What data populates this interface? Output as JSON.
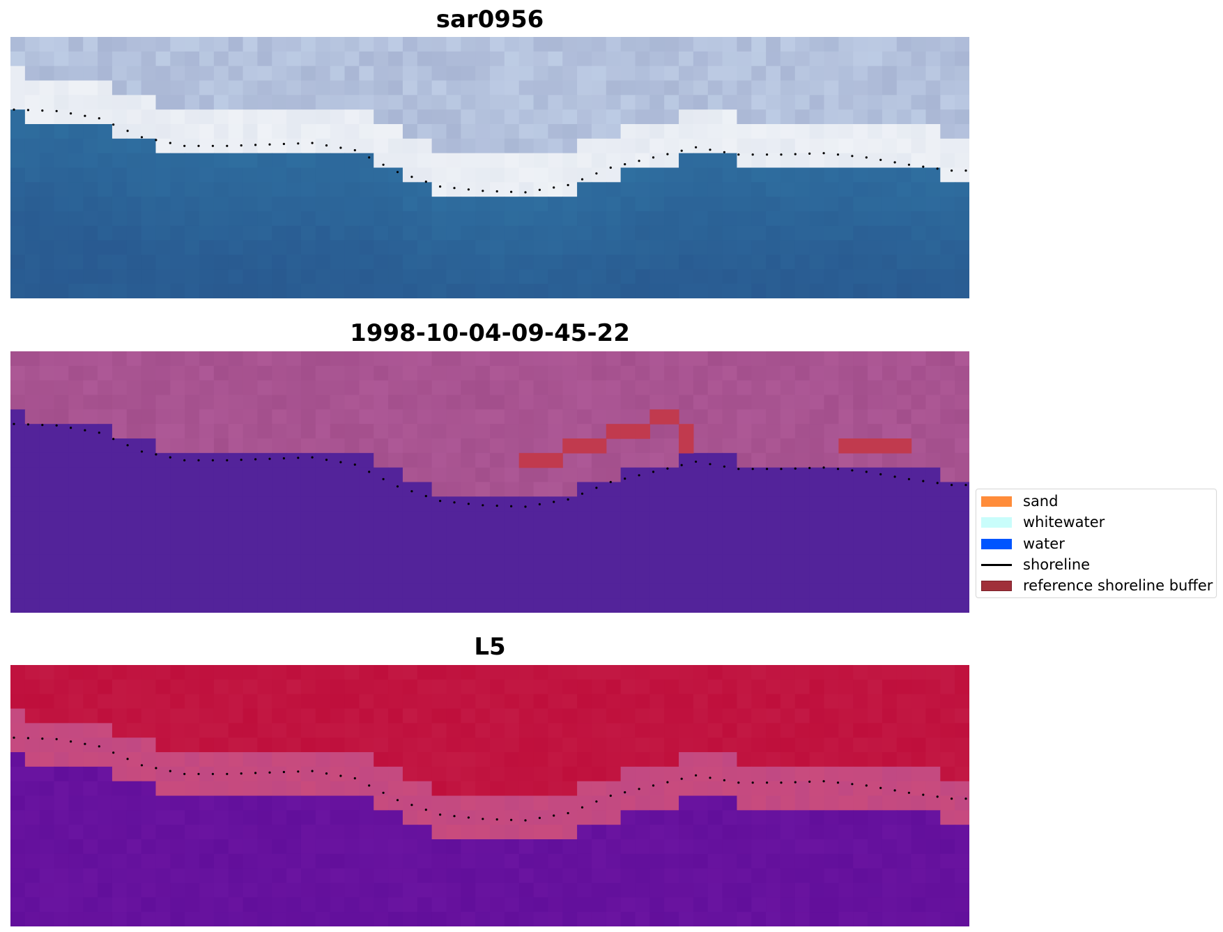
{
  "chart_data": [
    {
      "type": "heatmap",
      "title": "sar0956",
      "description_colors": {
        "top_land": "#a9b6d4",
        "surf_band": "#e4e9f1",
        "water": "#2f6fa0"
      },
      "shoreline_x": [
        0,
        3,
        6,
        9,
        12,
        15,
        18,
        21,
        24,
        27,
        30,
        33,
        36,
        39,
        42,
        45,
        48,
        51,
        54,
        57,
        60,
        63,
        66,
        67
      ],
      "shoreline_y": [
        5.0,
        5.1,
        5.6,
        6.9,
        7.5,
        7.5,
        7.4,
        7.3,
        7.8,
        9.3,
        10.3,
        10.6,
        10.7,
        10.2,
        9.0,
        8.3,
        7.6,
        8.1,
        8.1,
        8.0,
        8.3,
        8.8,
        9.2,
        9.2
      ]
    },
    {
      "type": "heatmap",
      "title": "1998-10-04-09-45-22",
      "description_colors": {
        "land": "#a34f8c",
        "water": "#53239a",
        "buffer": "#c13a4e"
      },
      "shoreline_x": [
        0,
        3,
        6,
        9,
        12,
        15,
        18,
        21,
        24,
        27,
        30,
        33,
        36,
        39,
        42,
        45,
        48,
        51,
        54,
        57,
        60,
        63,
        66,
        67
      ],
      "shoreline_y": [
        5.0,
        5.1,
        5.6,
        6.9,
        7.5,
        7.5,
        7.4,
        7.3,
        7.8,
        9.3,
        10.3,
        10.6,
        10.7,
        10.2,
        9.0,
        8.3,
        7.6,
        8.1,
        8.1,
        8.0,
        8.3,
        8.8,
        9.2,
        9.2
      ]
    },
    {
      "type": "heatmap",
      "title": "L5",
      "description_colors": {
        "land": "#bf0f3c",
        "transition": "#c94b7d",
        "water": "#6a14a0"
      },
      "shoreline_x": [
        0,
        3,
        6,
        9,
        12,
        15,
        18,
        21,
        24,
        27,
        30,
        33,
        36,
        39,
        42,
        45,
        48,
        51,
        54,
        57,
        60,
        63,
        66,
        67
      ],
      "shoreline_y": [
        5.0,
        5.1,
        5.6,
        6.9,
        7.5,
        7.5,
        7.4,
        7.3,
        7.8,
        9.3,
        10.3,
        10.6,
        10.7,
        10.2,
        9.0,
        8.3,
        7.6,
        8.1,
        8.1,
        8.0,
        8.3,
        8.8,
        9.2,
        9.2
      ]
    }
  ],
  "legend": {
    "placement": "right",
    "items": [
      {
        "label": "sand",
        "kind": "patch",
        "color": "#ff8c3a"
      },
      {
        "label": "whitewater",
        "kind": "patch",
        "color": "#c9fdfb"
      },
      {
        "label": "water",
        "kind": "patch",
        "color": "#0055ff"
      },
      {
        "label": "shoreline",
        "kind": "line",
        "color": "#000000"
      },
      {
        "label": "reference shoreline buffer",
        "kind": "patch",
        "color": "#a0303a"
      }
    ]
  }
}
